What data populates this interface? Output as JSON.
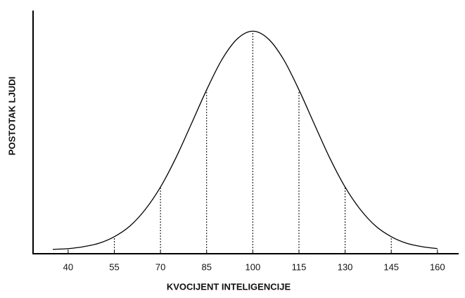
{
  "chart_data": {
    "type": "line",
    "x_label": "KVOCIJENT INTELIGENCIJE",
    "y_label": "POSTOTAK LJUDI",
    "x": [
      35,
      40,
      45,
      50,
      55,
      60,
      65,
      70,
      75,
      80,
      85,
      90,
      95,
      100,
      105,
      110,
      115,
      120,
      125,
      130,
      135,
      140,
      145,
      150,
      155,
      160
    ],
    "values": [
      1.8,
      2.1,
      2.9,
      4.3,
      7.0,
      11.3,
      18.1,
      27.4,
      39.4,
      53.3,
      67.4,
      79.9,
      88.4,
      91.5,
      88.4,
      79.9,
      67.4,
      53.3,
      39.4,
      27.4,
      18.1,
      11.3,
      7.0,
      4.3,
      2.9,
      2.1
    ],
    "color": "#000000",
    "xlim": [
      28.6,
      166.9
    ],
    "ylim": [
      0,
      100
    ],
    "xticks": [
      40,
      55,
      70,
      85,
      100,
      115,
      130,
      145,
      160
    ]
  }
}
